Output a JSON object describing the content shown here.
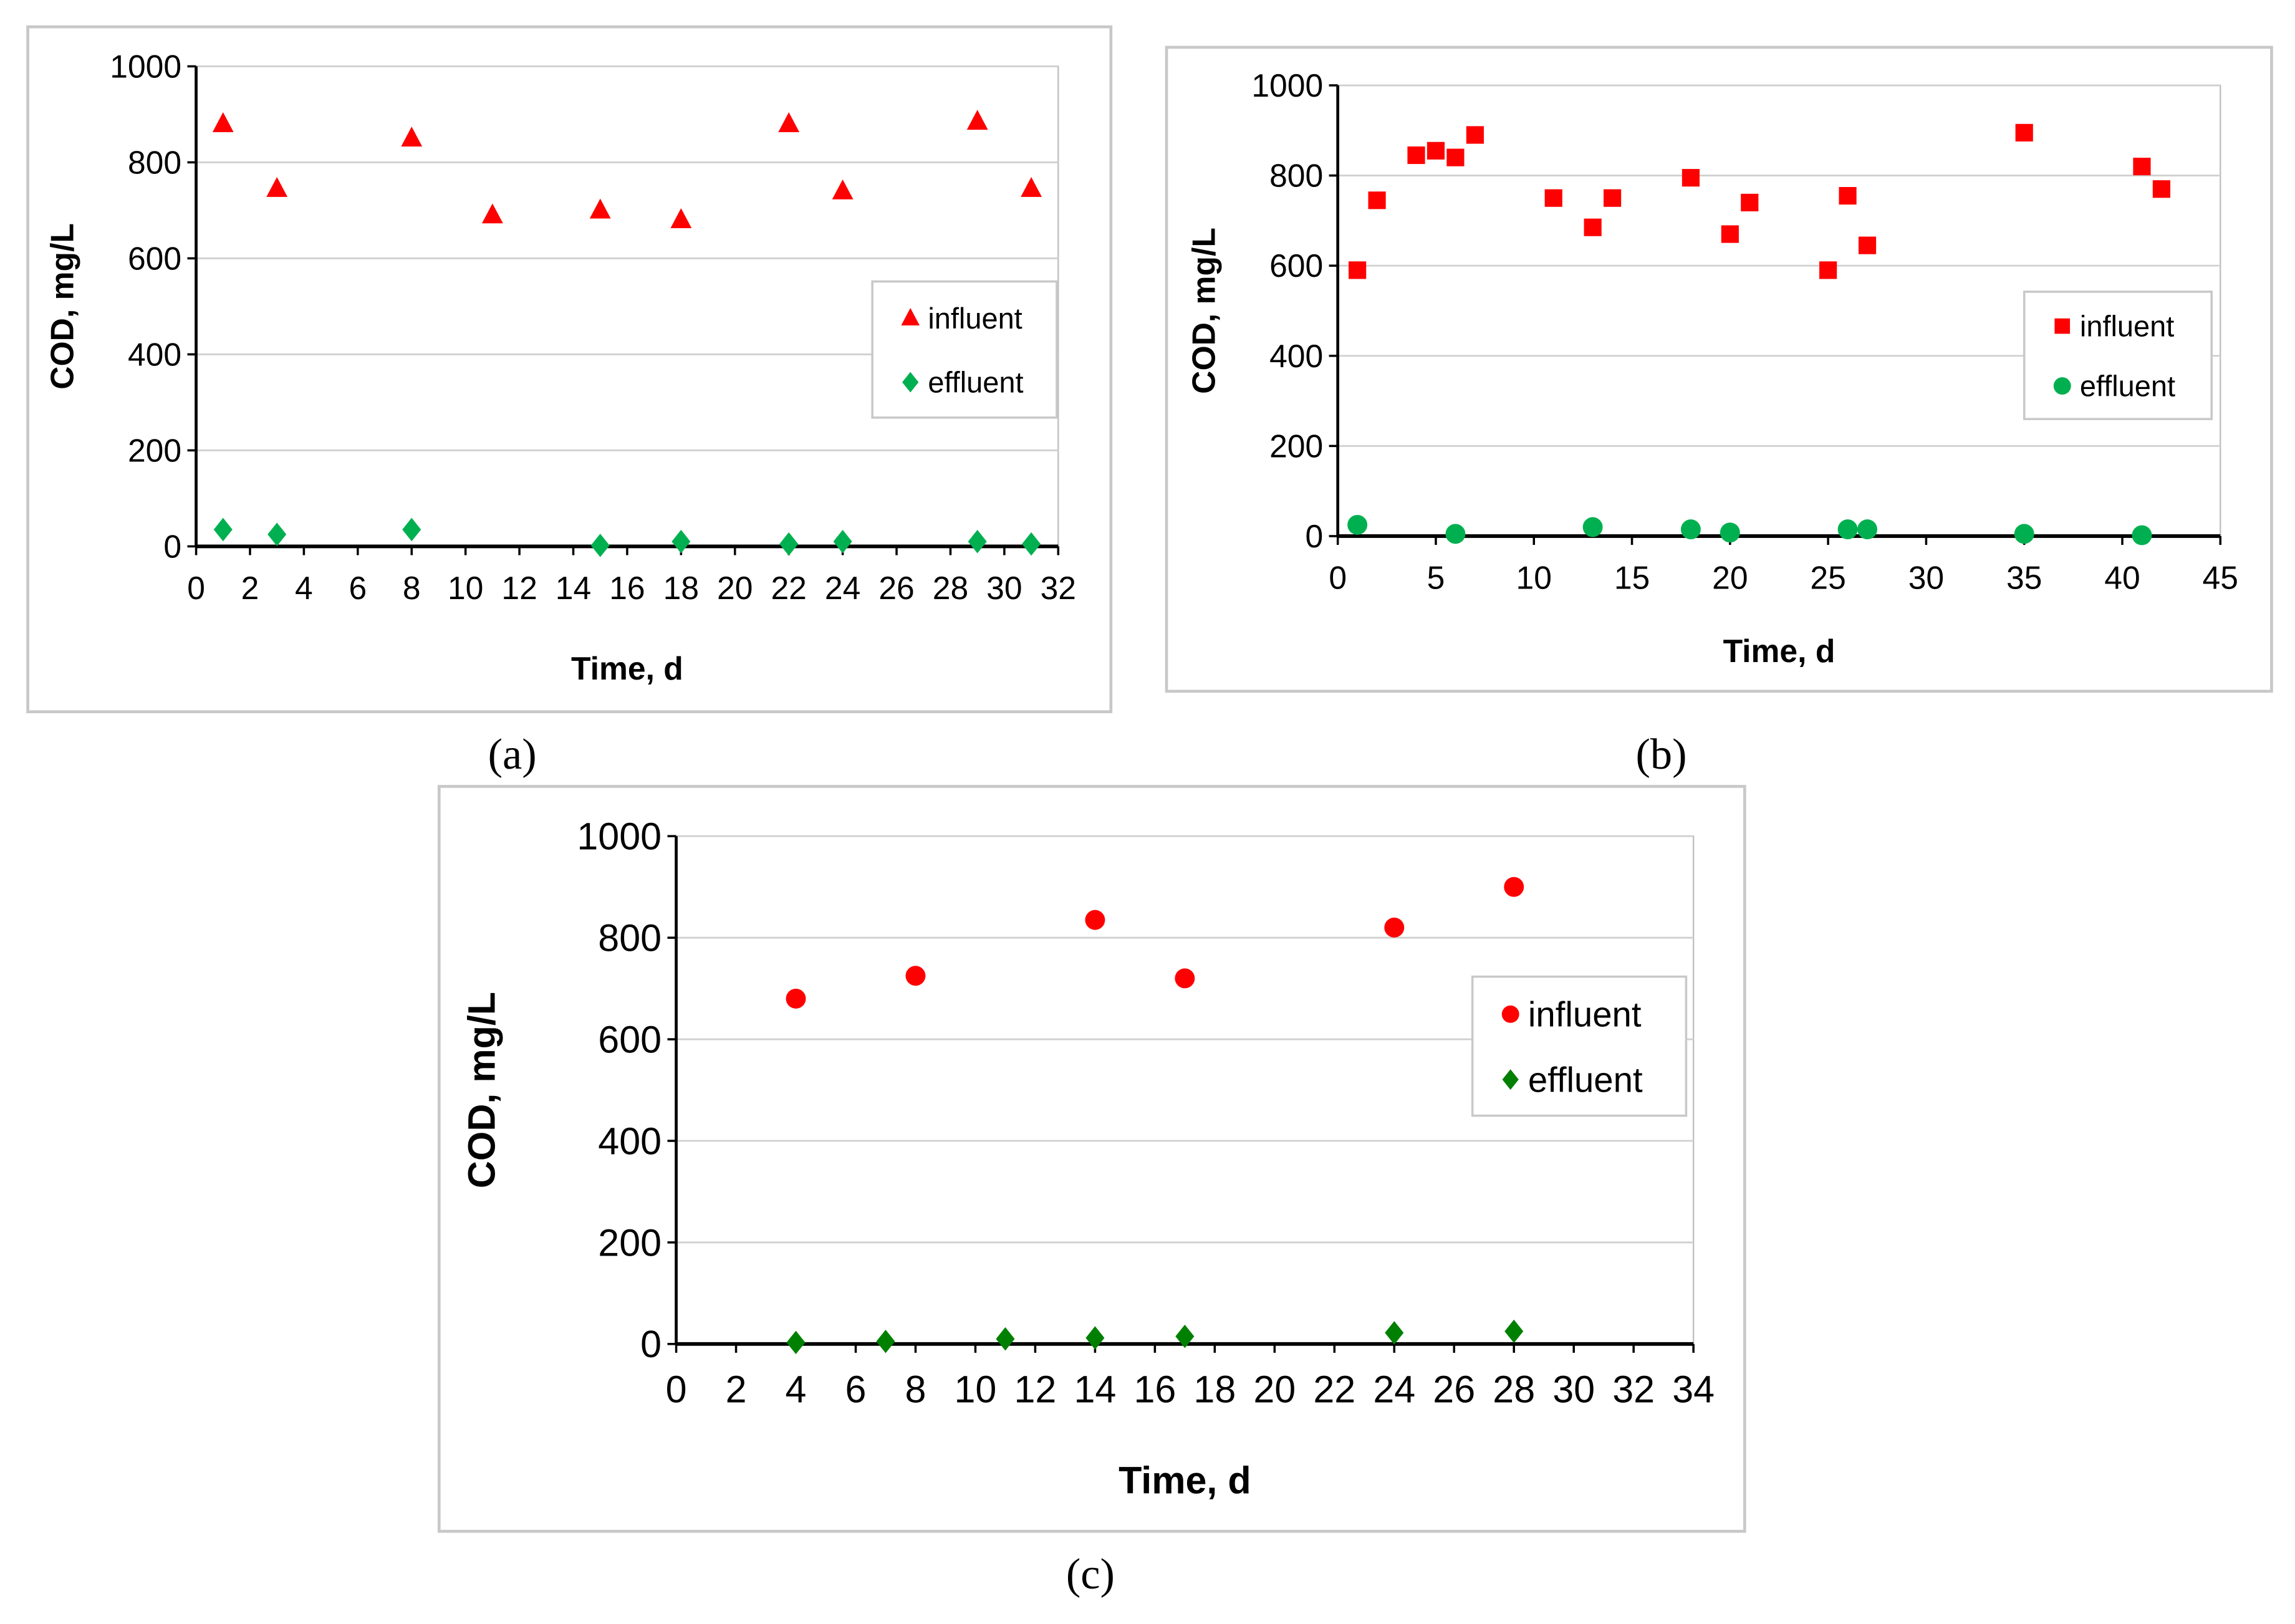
{
  "chart_data": [
    {
      "type": "scatter",
      "panel_label": "(a)",
      "xlabel": "Time, d",
      "ylabel": "COD, mg/L",
      "xlim": [
        0,
        32
      ],
      "xticks": [
        0,
        2,
        4,
        6,
        8,
        10,
        12,
        14,
        16,
        18,
        20,
        22,
        24,
        26,
        28,
        30,
        32
      ],
      "ylim": [
        0,
        1000
      ],
      "yticks": [
        0,
        200,
        400,
        600,
        800,
        1000
      ],
      "grid": true,
      "legend_placement": "right",
      "series": [
        {
          "name": "influent",
          "marker": "triangle",
          "color": "#ff0000",
          "x": [
            1,
            3,
            8,
            11,
            15,
            18,
            22,
            24,
            29,
            31
          ],
          "y": [
            880,
            745,
            850,
            690,
            700,
            680,
            880,
            740,
            885,
            745
          ]
        },
        {
          "name": "effluent",
          "marker": "diamond",
          "color": "#00b050",
          "x": [
            1,
            3,
            8,
            15,
            18,
            22,
            24,
            29,
            31
          ],
          "y": [
            35,
            25,
            35,
            2,
            10,
            5,
            10,
            10,
            5
          ]
        }
      ]
    },
    {
      "type": "scatter",
      "panel_label": "(b)",
      "xlabel": "Time, d",
      "ylabel": "COD, mg/L",
      "xlim": [
        0,
        45
      ],
      "xticks": [
        0,
        5,
        10,
        15,
        20,
        25,
        30,
        35,
        40,
        45
      ],
      "ylim": [
        0,
        1000
      ],
      "yticks": [
        0,
        200,
        400,
        600,
        800,
        1000
      ],
      "grid": true,
      "legend_placement": "right",
      "series": [
        {
          "name": "influent",
          "marker": "square",
          "color": "#ff0000",
          "x": [
            1,
            2,
            4,
            5,
            6,
            7,
            11,
            13,
            14,
            18,
            20,
            21,
            25,
            26,
            27,
            35,
            41,
            42
          ],
          "y": [
            590,
            745,
            845,
            855,
            840,
            890,
            750,
            685,
            750,
            795,
            670,
            740,
            590,
            755,
            645,
            895,
            820,
            770
          ]
        },
        {
          "name": "effluent",
          "marker": "circle",
          "color": "#00b050",
          "x": [
            1,
            6,
            13,
            18,
            20,
            26,
            27,
            35,
            41
          ],
          "y": [
            25,
            5,
            20,
            15,
            8,
            15,
            15,
            5,
            2
          ]
        }
      ]
    },
    {
      "type": "scatter",
      "panel_label": "(c)",
      "xlabel": "Time, d",
      "ylabel": "COD, mg/L",
      "xlim": [
        0,
        34
      ],
      "xticks": [
        0,
        2,
        4,
        6,
        8,
        10,
        12,
        14,
        16,
        18,
        20,
        22,
        24,
        26,
        28,
        30,
        32,
        34
      ],
      "ylim": [
        0,
        1000
      ],
      "yticks": [
        0,
        200,
        400,
        600,
        800,
        1000
      ],
      "grid": true,
      "legend_placement": "right",
      "series": [
        {
          "name": "influent",
          "marker": "circle",
          "color": "#ff0000",
          "x": [
            4,
            8,
            14,
            17,
            24,
            28
          ],
          "y": [
            680,
            725,
            835,
            720,
            820,
            900
          ]
        },
        {
          "name": "effluent",
          "marker": "diamond",
          "color": "#008000",
          "x": [
            4,
            7,
            11,
            14,
            17,
            24,
            28
          ],
          "y": [
            3,
            5,
            10,
            12,
            15,
            22,
            25
          ]
        }
      ]
    }
  ]
}
